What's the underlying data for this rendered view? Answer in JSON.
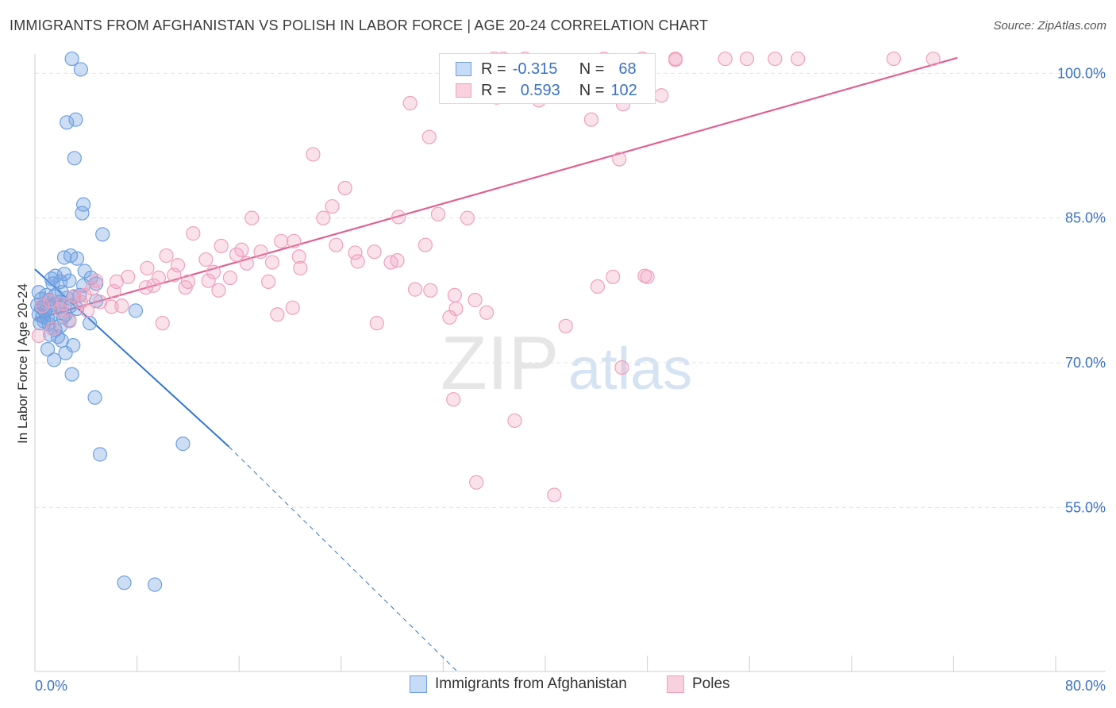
{
  "title": "IMMIGRANTS FROM AFGHANISTAN VS POLISH IN LABOR FORCE | AGE 20-24 CORRELATION CHART",
  "source": "Source: ZipAtlas.com",
  "watermark": {
    "zip": "ZIP",
    "atlas": "atlas"
  },
  "legend": {
    "r_label": "R =",
    "n_label": "N =",
    "rows": [
      {
        "r": "-0.315",
        "n": "68",
        "color": "#6fa0e0"
      },
      {
        "r": "0.593",
        "n": "102",
        "color": "#f0a0bc"
      }
    ]
  },
  "colors": {
    "blue": "#6fa0e0",
    "blue_line": "#2f75d0",
    "pink": "#f0a0bc",
    "pink_line": "#e06090",
    "tick_text": "#3a72c4"
  },
  "chart_data": {
    "type": "scatter",
    "title": "IMMIGRANTS FROM AFGHANISTAN VS POLISH IN LABOR FORCE | AGE 20-24 CORRELATION CHART",
    "xlabel": "",
    "ylabel": "In Labor Force | Age 20-24",
    "xlim": [
      0,
      80
    ],
    "ylim": [
      38,
      102
    ],
    "x_tick_labels": [
      "0.0%",
      "80.0%"
    ],
    "y_ticks": [
      55,
      70,
      85,
      100
    ],
    "y_tick_labels": [
      "55.0%",
      "70.0%",
      "85.0%",
      "100.0%"
    ],
    "grid": true,
    "legend_position": "bottom",
    "series": [
      {
        "name": "Immigrants from Afghanistan",
        "color": "#6fa0e0",
        "points": [
          [
            2.9,
            101.5
          ],
          [
            3.6,
            100.4
          ],
          [
            3.2,
            95.2
          ],
          [
            2.5,
            94.9
          ],
          [
            3.1,
            91.2
          ],
          [
            3.8,
            86.4
          ],
          [
            3.7,
            85.5
          ],
          [
            5.3,
            83.3
          ],
          [
            2.3,
            80.9
          ],
          [
            2.8,
            81.1
          ],
          [
            3.3,
            80.8
          ],
          [
            3.9,
            79.5
          ],
          [
            1.3,
            78.7
          ],
          [
            1.4,
            78.2
          ],
          [
            1.6,
            79.0
          ],
          [
            2.3,
            79.2
          ],
          [
            2.0,
            78.4
          ],
          [
            2.7,
            78.5
          ],
          [
            3.8,
            78.0
          ],
          [
            4.4,
            78.8
          ],
          [
            4.8,
            78.2
          ],
          [
            0.3,
            77.3
          ],
          [
            0.9,
            77.0
          ],
          [
            1.1,
            76.5
          ],
          [
            1.6,
            77.0
          ],
          [
            2.1,
            77.3
          ],
          [
            2.5,
            76.7
          ],
          [
            3.0,
            76.8
          ],
          [
            3.5,
            77.0
          ],
          [
            0.2,
            76.0
          ],
          [
            0.5,
            75.7
          ],
          [
            0.7,
            75.9
          ],
          [
            1.2,
            75.7
          ],
          [
            1.5,
            76.0
          ],
          [
            2.0,
            75.8
          ],
          [
            2.8,
            75.9
          ],
          [
            4.8,
            76.4
          ],
          [
            0.3,
            75.0
          ],
          [
            0.6,
            74.8
          ],
          [
            1.0,
            74.6
          ],
          [
            1.3,
            74.9
          ],
          [
            2.2,
            74.7
          ],
          [
            0.4,
            74.1
          ],
          [
            0.7,
            74.3
          ],
          [
            1.1,
            74.0
          ],
          [
            1.6,
            73.4
          ],
          [
            2.0,
            73.8
          ],
          [
            2.7,
            74.4
          ],
          [
            4.3,
            74.1
          ],
          [
            7.9,
            75.4
          ],
          [
            1.2,
            72.9
          ],
          [
            1.8,
            72.7
          ],
          [
            2.1,
            72.3
          ],
          [
            3.0,
            71.8
          ],
          [
            1.0,
            71.4
          ],
          [
            1.5,
            70.3
          ],
          [
            2.4,
            71.0
          ],
          [
            2.9,
            68.8
          ],
          [
            4.7,
            66.4
          ],
          [
            11.6,
            61.6
          ],
          [
            5.1,
            60.5
          ],
          [
            9.4,
            47.0
          ],
          [
            7.0,
            47.2
          ],
          [
            0.5,
            76.6
          ],
          [
            1.9,
            76.3
          ],
          [
            0.8,
            75.3
          ],
          [
            2.4,
            75.0
          ],
          [
            3.3,
            75.6
          ]
        ]
      },
      {
        "name": "Poles",
        "color": "#f0a0bc",
        "points": [
          [
            36.0,
            101.5
          ],
          [
            36.7,
            101.5
          ],
          [
            38.4,
            101.5
          ],
          [
            44.6,
            101.5
          ],
          [
            47.6,
            101.5
          ],
          [
            50.2,
            101.5
          ],
          [
            50.2,
            101.4
          ],
          [
            54.1,
            101.5
          ],
          [
            55.8,
            101.5
          ],
          [
            58.0,
            101.5
          ],
          [
            59.8,
            101.5
          ],
          [
            67.3,
            101.5
          ],
          [
            70.4,
            101.5
          ],
          [
            36.2,
            97.5
          ],
          [
            39.5,
            97.2
          ],
          [
            49.1,
            97.7
          ],
          [
            29.4,
            96.9
          ],
          [
            43.6,
            95.2
          ],
          [
            46.1,
            96.8
          ],
          [
            30.9,
            93.4
          ],
          [
            21.8,
            91.6
          ],
          [
            45.8,
            91.1
          ],
          [
            24.3,
            88.1
          ],
          [
            31.6,
            85.4
          ],
          [
            33.9,
            85.0
          ],
          [
            23.3,
            86.2
          ],
          [
            22.6,
            85.0
          ],
          [
            28.5,
            85.1
          ],
          [
            17.0,
            85.0
          ],
          [
            12.4,
            83.4
          ],
          [
            14.6,
            82.1
          ],
          [
            15.8,
            81.2
          ],
          [
            16.2,
            81.7
          ],
          [
            19.3,
            82.6
          ],
          [
            20.3,
            82.6
          ],
          [
            17.7,
            81.5
          ],
          [
            20.7,
            81.0
          ],
          [
            23.6,
            82.2
          ],
          [
            25.1,
            81.4
          ],
          [
            26.6,
            81.5
          ],
          [
            30.6,
            82.2
          ],
          [
            10.3,
            81.1
          ],
          [
            8.8,
            79.8
          ],
          [
            11.2,
            80.1
          ],
          [
            13.4,
            80.7
          ],
          [
            16.6,
            80.3
          ],
          [
            18.6,
            80.4
          ],
          [
            20.8,
            79.8
          ],
          [
            25.3,
            80.5
          ],
          [
            27.9,
            80.4
          ],
          [
            28.4,
            80.6
          ],
          [
            14.0,
            79.4
          ],
          [
            10.9,
            79.1
          ],
          [
            9.7,
            78.8
          ],
          [
            7.3,
            78.9
          ],
          [
            6.4,
            78.4
          ],
          [
            4.8,
            78.5
          ],
          [
            12.0,
            78.4
          ],
          [
            13.6,
            78.5
          ],
          [
            15.3,
            78.8
          ],
          [
            18.3,
            78.4
          ],
          [
            8.7,
            77.8
          ],
          [
            9.3,
            78.0
          ],
          [
            4.5,
            77.7
          ],
          [
            6.2,
            77.4
          ],
          [
            11.8,
            77.8
          ],
          [
            14.4,
            77.5
          ],
          [
            29.8,
            77.6
          ],
          [
            31.0,
            77.5
          ],
          [
            32.9,
            77.0
          ],
          [
            44.1,
            77.9
          ],
          [
            3.9,
            77.0
          ],
          [
            3.1,
            76.9
          ],
          [
            5.1,
            76.3
          ],
          [
            2.2,
            76.1
          ],
          [
            3.6,
            76.3
          ],
          [
            1.2,
            76.4
          ],
          [
            0.6,
            75.9
          ],
          [
            2.0,
            75.5
          ],
          [
            4.1,
            75.4
          ],
          [
            6.0,
            75.8
          ],
          [
            20.2,
            75.7
          ],
          [
            19.0,
            75.0
          ],
          [
            33.0,
            75.6
          ],
          [
            34.5,
            76.5
          ],
          [
            35.4,
            75.2
          ],
          [
            32.5,
            74.7
          ],
          [
            26.8,
            74.1
          ],
          [
            0.3,
            72.8
          ],
          [
            45.3,
            78.9
          ],
          [
            48.0,
            78.9
          ],
          [
            47.8,
            79.0
          ],
          [
            46.0,
            69.5
          ],
          [
            32.8,
            66.2
          ],
          [
            37.6,
            64.0
          ],
          [
            34.6,
            57.6
          ],
          [
            40.7,
            56.3
          ],
          [
            41.6,
            73.8
          ],
          [
            10.0,
            74.1
          ],
          [
            6.8,
            75.9
          ],
          [
            1.4,
            73.5
          ],
          [
            2.7,
            74.3
          ]
        ]
      }
    ],
    "trend_lines": [
      {
        "series": "Immigrants from Afghanistan",
        "solid": [
          [
            0,
            79.7
          ],
          [
            15.2,
            61.3
          ]
        ],
        "dashed": [
          [
            15.2,
            61.3
          ],
          [
            33.1,
            38.0
          ]
        ]
      },
      {
        "series": "Poles",
        "solid": [
          [
            0,
            74.5
          ],
          [
            72.3,
            101.6
          ]
        ]
      }
    ]
  }
}
